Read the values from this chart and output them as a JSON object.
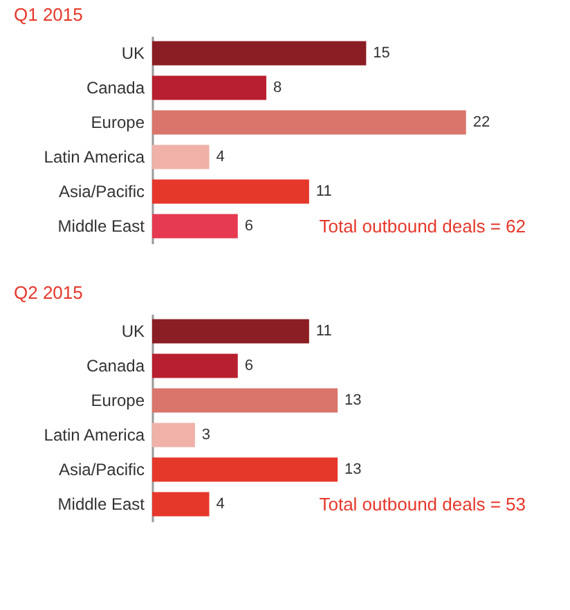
{
  "chart_data": [
    {
      "type": "bar",
      "orientation": "horizontal",
      "title": "Q1 2015",
      "categories": [
        "UK",
        "Canada",
        "Europe",
        "Latin America",
        "Asia/Pacific",
        "Middle East"
      ],
      "values": [
        15,
        8,
        22,
        4,
        11,
        6
      ],
      "colors": [
        "#8b1e24",
        "#b8202f",
        "#d9756b",
        "#efb1a8",
        "#e5382b",
        "#e53a50"
      ],
      "data_labels": true,
      "annotations": [
        "Total outbound deals = 62"
      ]
    },
    {
      "type": "bar",
      "orientation": "horizontal",
      "title": "Q2 2015",
      "categories": [
        "UK",
        "Canada",
        "Europe",
        "Latin America",
        "Asia/Pacific",
        "Middle East"
      ],
      "values": [
        11,
        6,
        13,
        3,
        13,
        4
      ],
      "colors": [
        "#8b1e24",
        "#b8202f",
        "#d9756b",
        "#efb1a8",
        "#e5382b",
        "#e5382b"
      ],
      "data_labels": true,
      "annotations": [
        "Total outbound deals = 53"
      ]
    }
  ]
}
